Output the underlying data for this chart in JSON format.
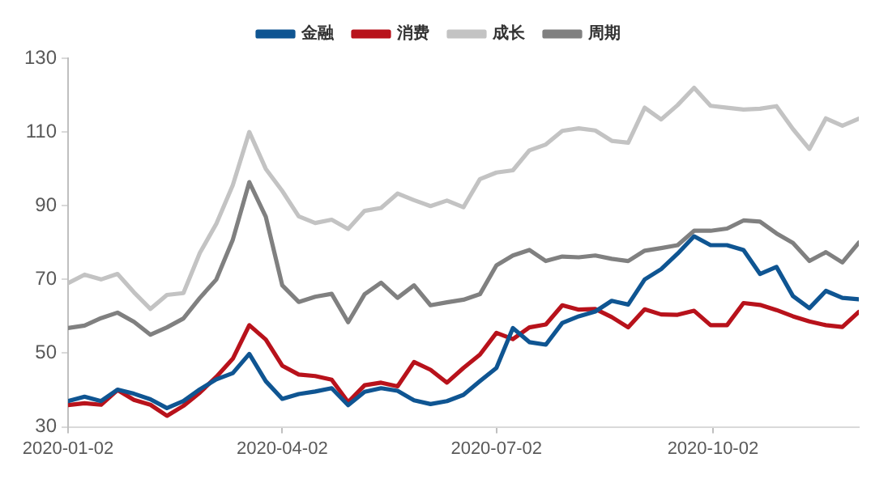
{
  "chart_data": {
    "type": "line",
    "legend": "top",
    "grid": false,
    "marker": "none",
    "line_style": "solid",
    "xlim": [
      "2020-01-02",
      "2020-12-03"
    ],
    "xticks": [
      "2020-01-02",
      "2020-04-02",
      "2020-07-02",
      "2020-10-02"
    ],
    "ylim": [
      30,
      130
    ],
    "yticks": [
      30,
      50,
      70,
      90,
      110,
      130
    ],
    "x": [
      "2020-01-02",
      "2020-01-09",
      "2020-01-16",
      "2020-01-23",
      "2020-01-30",
      "2020-02-06",
      "2020-02-13",
      "2020-02-20",
      "2020-02-27",
      "2020-03-05",
      "2020-03-12",
      "2020-03-19",
      "2020-03-26",
      "2020-04-02",
      "2020-04-09",
      "2020-04-16",
      "2020-04-23",
      "2020-04-30",
      "2020-05-07",
      "2020-05-14",
      "2020-05-21",
      "2020-05-28",
      "2020-06-04",
      "2020-06-11",
      "2020-06-18",
      "2020-06-25",
      "2020-07-02",
      "2020-07-09",
      "2020-07-16",
      "2020-07-23",
      "2020-07-30",
      "2020-08-06",
      "2020-08-13",
      "2020-08-20",
      "2020-08-27",
      "2020-09-03",
      "2020-09-10",
      "2020-09-17",
      "2020-09-24",
      "2020-10-01",
      "2020-10-08",
      "2020-10-15",
      "2020-10-22",
      "2020-10-29",
      "2020-11-05",
      "2020-11-12",
      "2020-11-19",
      "2020-11-26",
      "2020-12-03"
    ],
    "series": [
      {
        "name": "金融",
        "color": "#0f5592",
        "values": [
          37,
          38.2,
          37,
          40.1,
          39,
          37.5,
          35.1,
          37,
          40.2,
          42.9,
          44.6,
          49.8,
          42.4,
          37.6,
          38.9,
          39.6,
          40.5,
          35.9,
          39.5,
          40.5,
          39.8,
          37.2,
          36.2,
          37,
          38.7,
          42.4,
          46,
          56.8,
          53,
          52.3,
          58.2,
          60,
          61.3,
          64.2,
          63.2,
          70,
          72.8,
          77,
          81.7,
          79.3,
          79.3,
          78,
          71.5,
          73.4,
          65.5,
          62.2,
          66.9,
          65,
          64.6
        ]
      },
      {
        "name": "消费",
        "color": "#b8121b",
        "values": [
          35.9,
          36.4,
          36,
          40,
          37.3,
          36,
          33,
          35.7,
          39.3,
          43.6,
          48.5,
          57.6,
          53.7,
          46.6,
          44.2,
          43.8,
          42.8,
          36.7,
          41.3,
          42,
          41,
          47.6,
          45.5,
          42,
          46,
          49.6,
          55.5,
          53.8,
          57,
          57.8,
          63,
          61.8,
          62,
          59.8,
          57,
          61.9,
          60.5,
          60.4,
          61.5,
          57.6,
          57.6,
          63.6,
          63.1,
          61.7,
          60,
          58.6,
          57.6,
          57.1,
          61.2
        ]
      },
      {
        "name": "成长",
        "color": "#c3c3c3",
        "values": [
          69,
          71.3,
          70,
          71.5,
          66.5,
          62,
          65.8,
          66.3,
          77.2,
          85.1,
          95.6,
          110,
          100,
          94,
          87.1,
          85.3,
          86.2,
          83.7,
          88.6,
          89.4,
          93.3,
          91.5,
          89.9,
          91.4,
          89.6,
          97.2,
          99,
          99.6,
          105,
          106.6,
          110.3,
          111,
          110.4,
          107.6,
          107.1,
          116.6,
          113.4,
          117.3,
          122,
          117.1,
          116.6,
          116.1,
          116.3,
          117,
          110.8,
          105.4,
          113.7,
          111.7,
          113.6
        ]
      },
      {
        "name": "周期",
        "color": "#808080",
        "values": [
          56.8,
          57.5,
          59.5,
          61,
          58.5,
          55,
          57,
          59.4,
          65,
          70,
          80.8,
          96.4,
          87,
          68.4,
          63.9,
          65.3,
          66.1,
          58.4,
          66,
          69.1,
          65,
          68.4,
          63,
          63.8,
          64.5,
          66,
          73.8,
          76.5,
          78,
          75,
          76.2,
          76,
          76.5,
          75.6,
          75,
          77.8,
          78.5,
          79.3,
          83.2,
          83.2,
          83.8,
          86,
          85.7,
          82.5,
          79.9,
          75,
          77.4,
          74.6,
          80
        ]
      }
    ]
  }
}
